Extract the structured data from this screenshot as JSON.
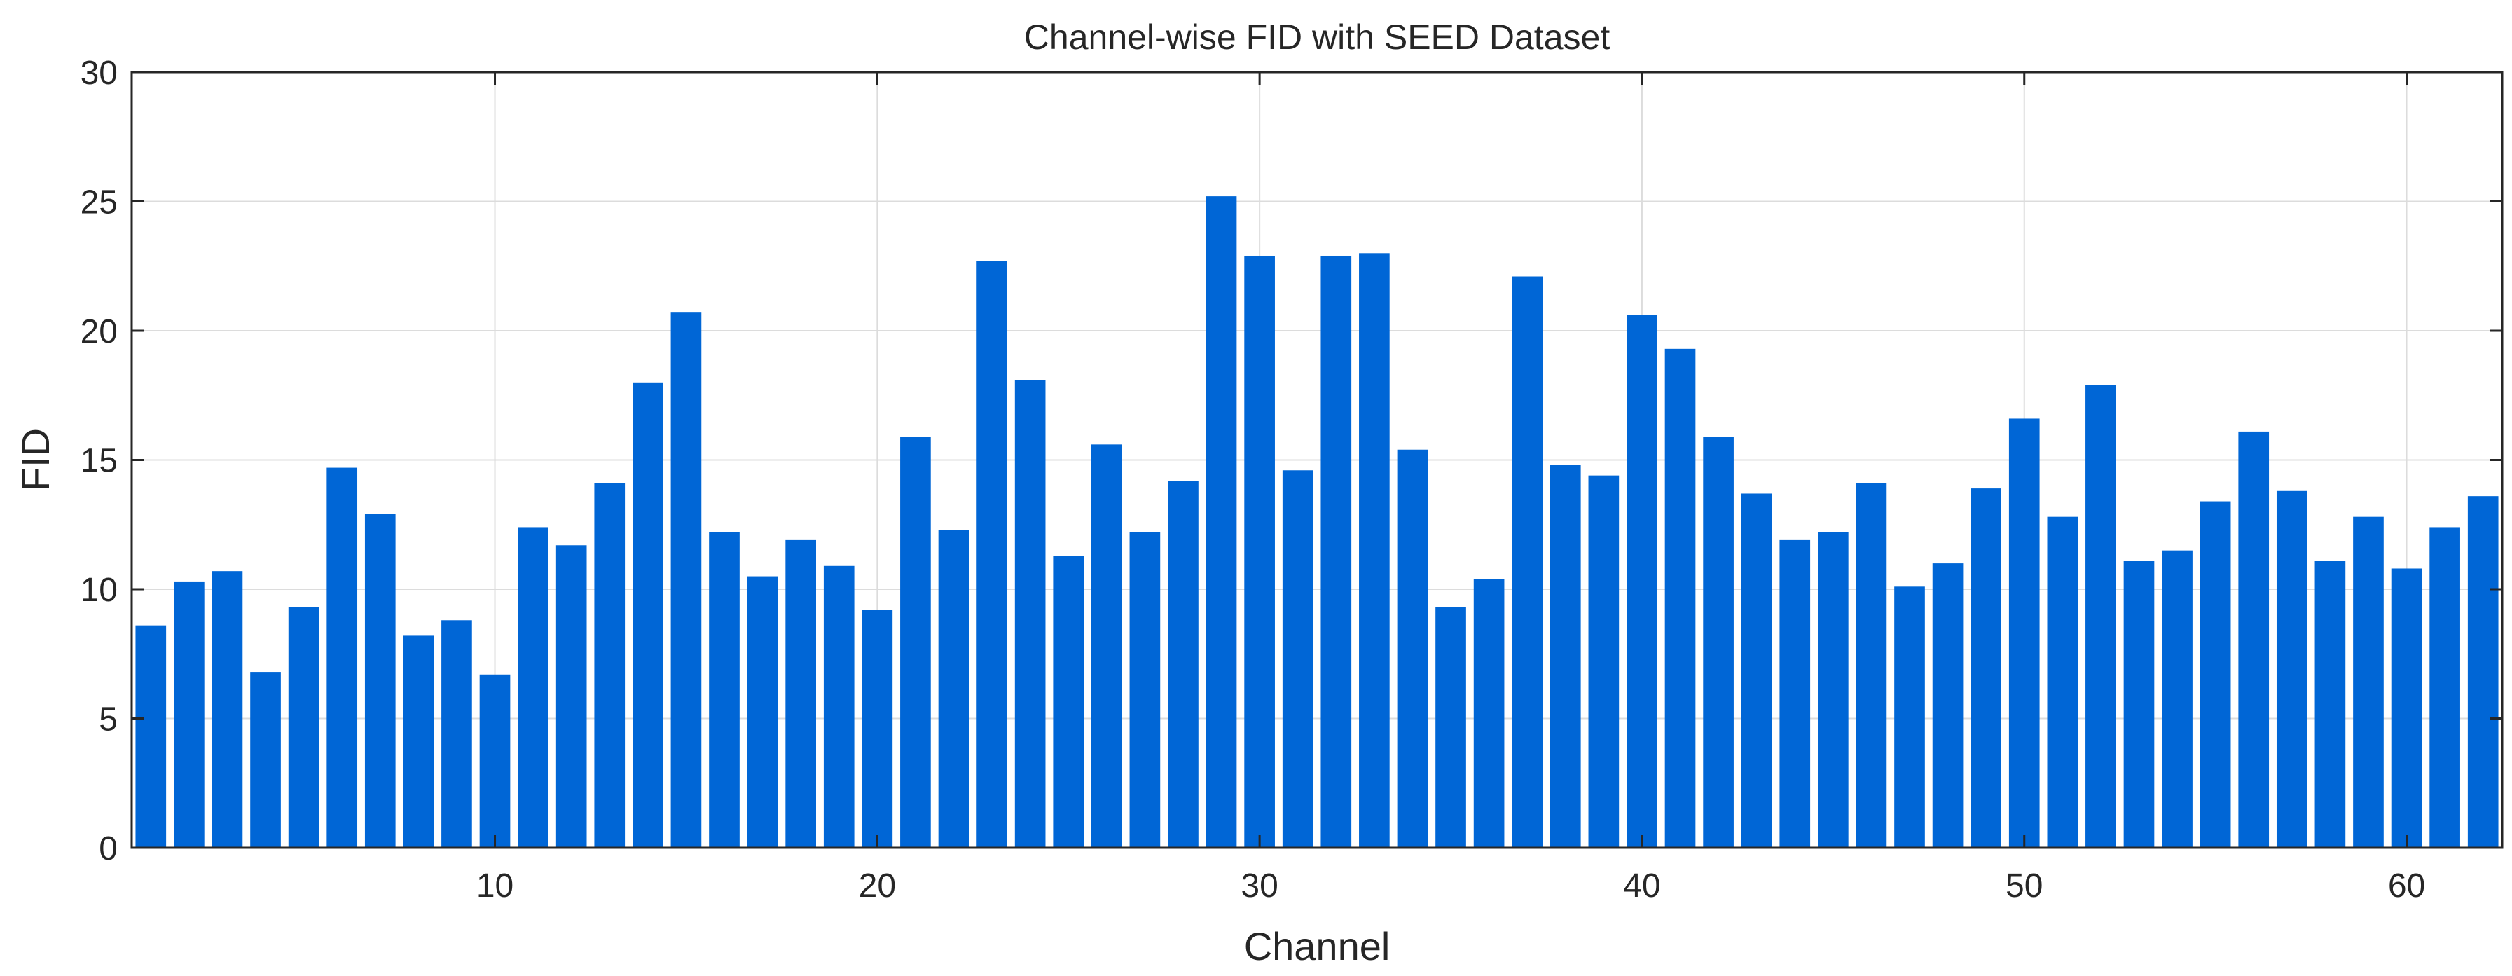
{
  "chart_data": {
    "type": "bar",
    "title": "Channel-wise FID with SEED Dataset",
    "xlabel": "Channel",
    "ylabel": "FID",
    "xlim": [
      0.5,
      62.5
    ],
    "ylim": [
      0,
      30
    ],
    "xticks": [
      10,
      20,
      30,
      40,
      50,
      60
    ],
    "yticks": [
      0,
      5,
      10,
      15,
      20,
      25,
      30
    ],
    "grid": true,
    "bar_color": "#0066d6",
    "categories": [
      1,
      2,
      3,
      4,
      5,
      6,
      7,
      8,
      9,
      10,
      11,
      12,
      13,
      14,
      15,
      16,
      17,
      18,
      19,
      20,
      21,
      22,
      23,
      24,
      25,
      26,
      27,
      28,
      29,
      30,
      31,
      32,
      33,
      34,
      35,
      36,
      37,
      38,
      39,
      40,
      41,
      42,
      43,
      44,
      45,
      46,
      47,
      48,
      49,
      50,
      51,
      52,
      53,
      54,
      55,
      56,
      57,
      58,
      59,
      60,
      61,
      62
    ],
    "values": [
      8.6,
      10.3,
      10.7,
      6.8,
      9.3,
      14.7,
      12.9,
      8.2,
      8.8,
      6.7,
      12.4,
      11.7,
      14.1,
      18.0,
      20.7,
      12.2,
      10.5,
      11.9,
      10.9,
      9.2,
      15.9,
      12.3,
      22.7,
      18.1,
      11.3,
      15.6,
      12.2,
      14.2,
      25.2,
      22.9,
      14.6,
      22.9,
      23.0,
      15.4,
      9.3,
      10.4,
      22.1,
      14.8,
      14.4,
      20.6,
      19.3,
      15.9,
      13.7,
      11.9,
      12.2,
      14.1,
      10.1,
      11.0,
      13.9,
      16.6,
      12.8,
      17.9,
      11.1,
      11.5,
      13.4,
      16.1,
      13.8,
      11.1,
      12.8,
      10.8,
      12.4,
      13.6
    ]
  }
}
